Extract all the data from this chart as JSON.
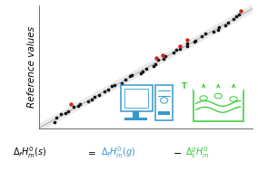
{
  "background_color": "#ffffff",
  "plot_bg": "#ffffff",
  "ylabel": "Reference values",
  "line_color": "#aaaaaa",
  "black_color": "#111111",
  "red_color": "#cc2222",
  "computer_color": "#3399cc",
  "beaker_color": "#33cc33",
  "xlim": [
    -5.5,
    5.5
  ],
  "ylim": [
    -5.5,
    5.8
  ],
  "formula_black_parts": [
    "$\\Delta_f H_m^0(s)$",
    "$=$",
    "$\\Delta_f H_m^0(g)$",
    "$-$",
    "$\\Delta_s^g H_m^0$"
  ],
  "ylabel_fontsize": 7.5,
  "formula_fontsize": 7.0
}
